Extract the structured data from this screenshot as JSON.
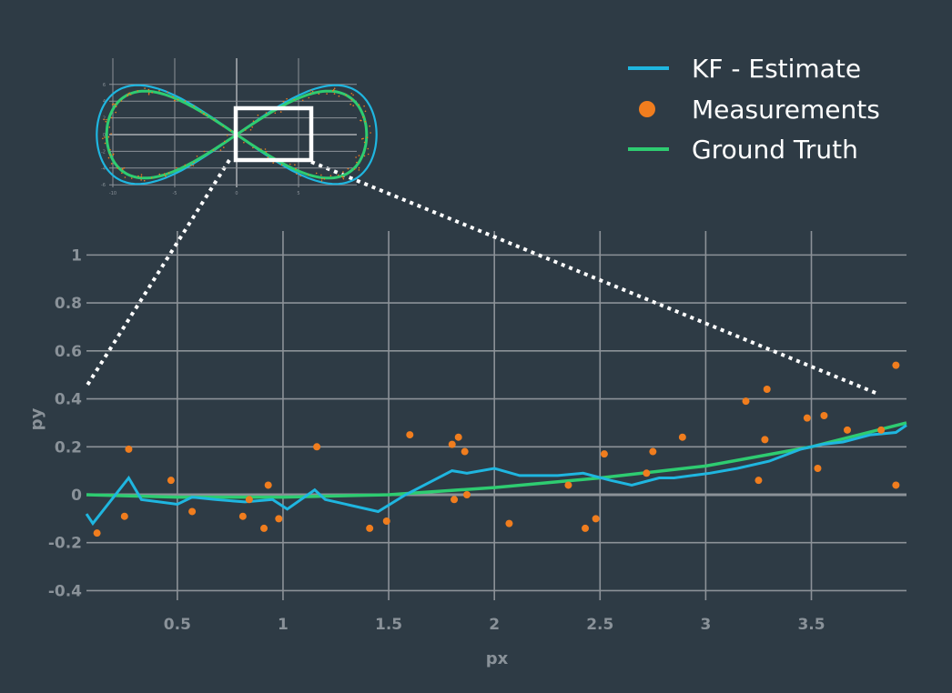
{
  "colors": {
    "background": "#2e3b45",
    "grid": "#8c9298",
    "estimate": "#1fb6e0",
    "measurement": "#f07d1e",
    "ground_truth": "#2ecc71",
    "tick_text": "#8a9299"
  },
  "legend": {
    "placement": "top-right",
    "items": [
      {
        "label": "KF - Estimate",
        "color": "#1fb6e0",
        "marker": "line"
      },
      {
        "label": "Measurements",
        "color": "#f07d1e",
        "marker": "dot"
      },
      {
        "label": "Ground Truth",
        "color": "#2ecc71",
        "marker": "line"
      }
    ]
  },
  "chart_data": {
    "type": "scatter",
    "xlabel": "px",
    "ylabel": "py",
    "xlim": [
      0.07,
      3.95
    ],
    "ylim": [
      -0.44,
      1.1
    ],
    "grid": true,
    "x_ticks": [
      0.5,
      1,
      1.5,
      2,
      2.5,
      3,
      3.5
    ],
    "x_tick_labels": [
      "0.5",
      "1",
      "1.5",
      "2",
      "2.5",
      "3",
      "3.5"
    ],
    "y_ticks": [
      1,
      0.8,
      0.6,
      0.4,
      0.2,
      0,
      -0.2,
      -0.4
    ],
    "y_tick_labels": [
      "1",
      "0.8",
      "0.6",
      "0.4",
      "0.2",
      "0",
      "-0.2",
      "-0.4"
    ],
    "series": [
      {
        "name": "KF - Estimate",
        "kind": "line",
        "x": [
          0.07,
          0.1,
          0.27,
          0.33,
          0.5,
          0.57,
          0.68,
          0.82,
          0.95,
          1.02,
          1.15,
          1.2,
          1.45,
          1.58,
          1.8,
          1.87,
          2.0,
          2.12,
          2.3,
          2.42,
          2.55,
          2.65,
          2.78,
          2.85,
          3.02,
          3.15,
          3.3,
          3.45,
          3.55,
          3.65,
          3.78,
          3.9,
          3.95
        ],
        "y": [
          -0.08,
          -0.12,
          0.07,
          -0.02,
          -0.04,
          -0.01,
          -0.02,
          -0.03,
          -0.02,
          -0.06,
          0.02,
          -0.02,
          -0.07,
          0.0,
          0.1,
          0.09,
          0.11,
          0.08,
          0.08,
          0.09,
          0.06,
          0.04,
          0.07,
          0.07,
          0.09,
          0.11,
          0.14,
          0.19,
          0.21,
          0.22,
          0.25,
          0.26,
          0.29
        ]
      },
      {
        "name": "Ground Truth",
        "kind": "line",
        "x": [
          0.07,
          0.5,
          1.0,
          1.5,
          2.0,
          2.5,
          3.0,
          3.5,
          3.95
        ],
        "y": [
          0.0,
          -0.01,
          -0.01,
          0.0,
          0.03,
          0.07,
          0.12,
          0.2,
          0.3
        ]
      },
      {
        "name": "Measurements",
        "kind": "markers",
        "x": [
          0.12,
          0.25,
          0.27,
          0.47,
          0.57,
          0.81,
          0.84,
          0.91,
          0.93,
          0.98,
          1.16,
          1.41,
          1.49,
          1.6,
          1.8,
          1.81,
          1.83,
          1.86,
          1.87,
          2.07,
          2.35,
          2.43,
          2.48,
          2.52,
          2.72,
          2.75,
          2.89,
          3.19,
          3.25,
          3.28,
          3.29,
          3.48,
          3.53,
          3.56,
          3.67,
          3.83,
          3.9,
          3.9
        ],
        "y": [
          -0.16,
          -0.09,
          0.19,
          0.06,
          -0.07,
          -0.09,
          -0.02,
          -0.14,
          0.04,
          -0.1,
          0.2,
          -0.14,
          -0.11,
          0.25,
          0.21,
          -0.02,
          0.24,
          0.18,
          0.0,
          -0.12,
          0.04,
          -0.14,
          -0.1,
          0.17,
          0.09,
          0.18,
          0.24,
          0.39,
          0.06,
          0.23,
          0.44,
          0.32,
          0.11,
          0.33,
          0.27,
          0.27,
          0.54,
          0.04
        ]
      }
    ]
  },
  "inset": {
    "x_tick_labels": [
      "-10",
      "-5",
      "0",
      "5"
    ],
    "y_tick_labels": [
      "6",
      "4",
      "2",
      "0",
      "-2",
      "-4",
      "-6"
    ],
    "xlabel": "px",
    "ylabel": "py",
    "highlight_box": {
      "x_range": [
        0,
        1.2
      ],
      "y_range": [
        -2.8,
        2.6
      ]
    }
  }
}
